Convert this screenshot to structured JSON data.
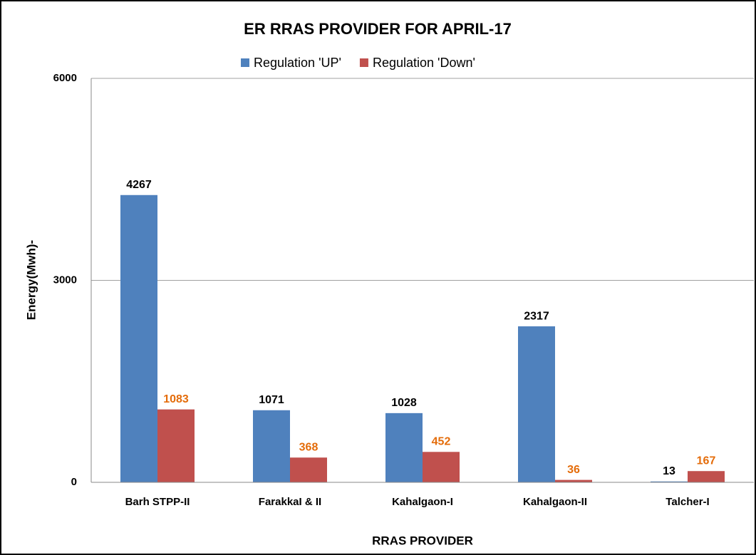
{
  "chart_data": {
    "type": "bar",
    "title": "ER RRAS PROVIDER FOR APRIL-17",
    "x_label": "RRAS PROVIDER",
    "y_label": "Energy(Mwh)-",
    "categories": [
      "Barh STPP-II",
      "FarakkaI & II",
      "Kahalgaon-I",
      "Kahalgaon-II",
      "Talcher-I"
    ],
    "series": [
      {
        "name": "Regulation 'UP'",
        "color": "#4f81bd",
        "label_color": "#000000",
        "values": [
          4267,
          1071,
          1028,
          2317,
          13
        ]
      },
      {
        "name": "Regulation 'Down'",
        "color": "#c0504d",
        "label_color": "#e46c0a",
        "values": [
          1083,
          368,
          452,
          36,
          167
        ]
      }
    ],
    "ylim": [
      0,
      6000
    ],
    "yticks": [
      0,
      3000,
      6000
    ],
    "grid": true,
    "legend": "top"
  }
}
